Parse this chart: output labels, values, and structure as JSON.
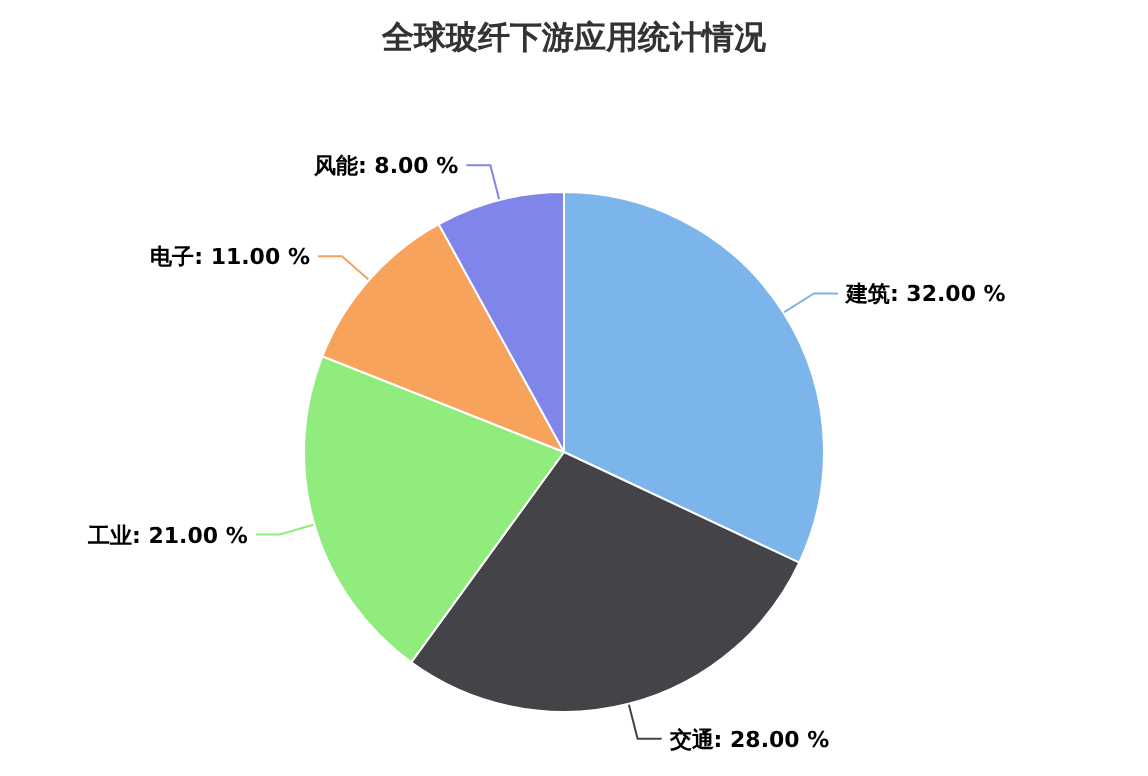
{
  "chart_data": {
    "type": "pie",
    "title": "全球玻纤下游应用统计情况",
    "categories": [
      "建筑",
      "交通",
      "工业",
      "电子",
      "风能"
    ],
    "values": [
      32,
      28,
      21,
      11,
      8
    ],
    "value_labels": [
      "32.00 %",
      "28.00 %",
      "21.00 %",
      "11.00 %",
      "8.00 %"
    ],
    "colors": [
      "#7cb5ec",
      "#434348",
      "#90ed7d",
      "#f7a35c",
      "#8085e9"
    ]
  }
}
